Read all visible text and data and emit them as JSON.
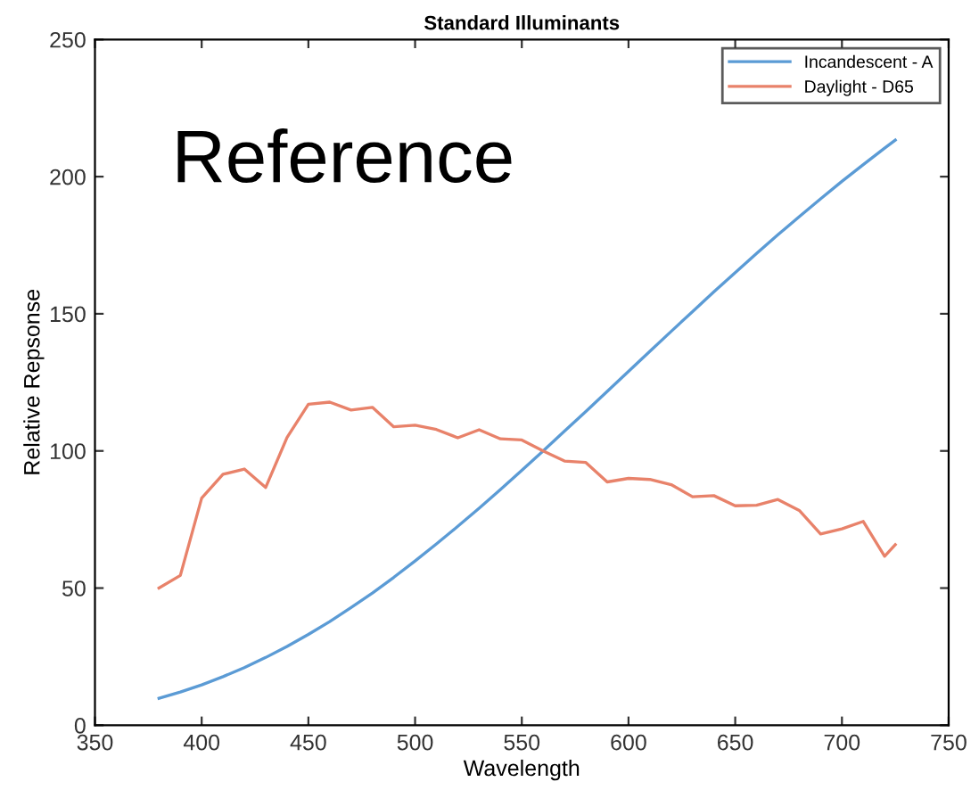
{
  "chart_data": {
    "type": "line",
    "title": "Standard Illuminants",
    "xlabel": "Wavelength",
    "ylabel": "Relative Repsonse",
    "annotations": [
      "Reference"
    ],
    "x": [
      380,
      390,
      400,
      410,
      420,
      430,
      440,
      450,
      460,
      470,
      480,
      490,
      500,
      510,
      520,
      530,
      540,
      550,
      560,
      570,
      580,
      590,
      600,
      610,
      620,
      630,
      640,
      650,
      660,
      670,
      680,
      690,
      700,
      710,
      720,
      725
    ],
    "series": [
      {
        "name": "Incandescent - A",
        "color": "#5b9bd5",
        "values": [
          9.8,
          12.1,
          14.7,
          17.7,
          21.0,
          24.7,
          28.7,
          33.1,
          37.8,
          42.9,
          48.2,
          53.9,
          59.9,
          66.1,
          72.5,
          79.1,
          85.9,
          92.9,
          100,
          107.2,
          114.4,
          121.7,
          129.0,
          136.3,
          143.6,
          150.8,
          158.0,
          165.0,
          172.0,
          178.8,
          185.4,
          191.9,
          198.3,
          204.4,
          210.4,
          213.3
        ]
      },
      {
        "name": "Daylight - D65",
        "color": "#e8826a",
        "values": [
          50.0,
          54.6,
          82.8,
          91.5,
          93.4,
          86.7,
          104.9,
          117.0,
          117.8,
          114.9,
          115.9,
          108.8,
          109.4,
          107.8,
          104.8,
          107.7,
          104.4,
          104.0,
          100.0,
          96.3,
          95.8,
          88.7,
          90.0,
          89.6,
          87.7,
          83.3,
          83.7,
          80.0,
          80.2,
          82.3,
          78.3,
          69.7,
          71.6,
          74.3,
          61.6,
          65.8
        ]
      }
    ],
    "xlim": [
      350,
      750
    ],
    "xticks": [
      350,
      400,
      450,
      500,
      550,
      600,
      650,
      700,
      750
    ],
    "ylim": [
      0,
      250
    ],
    "yticks": [
      0,
      50,
      100,
      150,
      200,
      250
    ],
    "grid": false,
    "legend": "top right",
    "marker": "none",
    "line_style": "solid"
  }
}
